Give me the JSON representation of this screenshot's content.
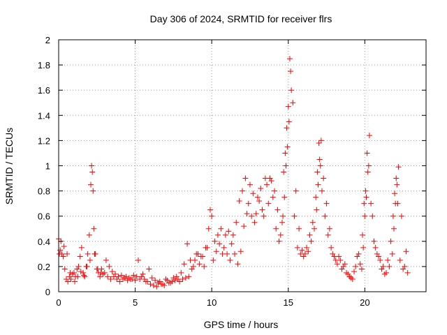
{
  "chart_data": {
    "type": "scatter",
    "title": "Day 306 of 2024, SRMTID for receiver flrs",
    "xlabel": "GPS time / hours",
    "ylabel": "SRMTID / TECUs",
    "xlim": [
      0,
      24
    ],
    "ylim": [
      0,
      2
    ],
    "xticks": [
      0,
      5,
      10,
      15,
      20
    ],
    "yticks": [
      0,
      0.2,
      0.4,
      0.6,
      0.8,
      1,
      1.2,
      1.4,
      1.6,
      1.8,
      2
    ],
    "grid": true,
    "marker": "+",
    "color": "#ff0000",
    "series": [
      {
        "name": "SRMTID",
        "x": [
          0.0,
          0.1,
          0.2,
          0.3,
          0.4,
          0.5,
          0.6,
          0.7,
          0.8,
          0.9,
          1.0,
          1.1,
          1.2,
          1.3,
          1.4,
          1.5,
          1.6,
          1.7,
          1.8,
          1.9,
          2.0,
          2.1,
          2.15,
          2.2,
          2.25,
          2.3,
          2.4,
          2.5,
          2.6,
          2.7,
          2.8,
          2.9,
          3.0,
          3.2,
          3.4,
          3.6,
          3.8,
          4.0,
          4.2,
          4.4,
          4.6,
          4.8,
          5.0,
          5.2,
          5.4,
          5.6,
          5.8,
          6.0,
          6.2,
          6.4,
          6.6,
          6.8,
          7.0,
          7.2,
          7.4,
          7.6,
          7.8,
          8.0,
          8.2,
          8.4,
          8.6,
          8.8,
          9.0,
          9.2,
          9.4,
          9.6,
          9.8,
          9.9,
          10.0,
          10.2,
          10.4,
          10.6,
          10.8,
          11.0,
          11.2,
          11.4,
          11.6,
          11.8,
          12.0,
          12.2,
          12.4,
          12.6,
          12.8,
          13.0,
          13.2,
          13.4,
          13.6,
          13.8,
          14.0,
          14.2,
          14.4,
          14.6,
          14.7,
          14.8,
          14.9,
          15.0,
          15.1,
          15.2,
          15.4,
          15.6,
          15.8,
          16.0,
          16.2,
          16.4,
          16.6,
          16.8,
          16.9,
          17.0,
          17.1,
          17.2,
          17.4,
          17.6,
          17.8,
          18.0,
          18.2,
          18.4,
          18.6,
          18.8,
          19.0,
          19.2,
          19.4,
          19.6,
          19.8,
          19.9,
          20.0,
          20.1,
          20.2,
          20.3,
          20.4,
          20.6,
          20.8,
          21.0,
          21.2,
          21.4,
          21.6,
          21.8,
          21.9,
          22.0,
          22.1,
          22.2,
          22.4,
          22.6,
          22.8,
          0.05,
          0.15,
          0.35,
          0.55,
          0.75,
          1.05,
          1.25,
          1.45,
          1.65,
          1.85,
          2.05,
          2.35,
          2.55,
          2.75,
          3.1,
          3.3,
          3.5,
          3.7,
          3.9,
          4.1,
          4.3,
          4.5,
          4.7,
          4.9,
          5.1,
          5.3,
          5.5,
          5.7,
          5.9,
          6.1,
          6.3,
          6.5,
          6.7,
          6.9,
          7.1,
          7.3,
          7.5,
          7.7,
          7.9,
          8.1,
          8.3,
          8.5,
          8.7,
          8.9,
          9.1,
          9.3,
          9.5,
          9.7,
          10.1,
          10.3,
          10.5,
          10.7,
          10.9,
          11.1,
          11.3,
          11.5,
          11.7,
          11.9,
          12.1,
          12.3,
          12.5,
          12.7,
          12.9,
          13.1,
          13.3,
          13.5,
          13.7,
          13.9,
          14.1,
          14.3,
          14.5,
          14.65,
          14.75,
          14.85,
          14.95,
          15.05,
          15.15,
          15.3,
          15.5,
          15.7,
          15.9,
          16.1,
          16.3,
          16.5,
          16.7,
          16.85,
          16.95,
          17.05,
          17.15,
          17.3,
          17.5,
          17.7,
          17.9,
          18.1,
          18.3,
          18.5,
          18.7,
          18.9,
          19.1,
          19.3,
          19.5,
          19.7,
          19.85,
          19.95,
          20.05,
          20.15,
          20.25,
          20.5,
          20.7,
          20.9,
          21.1,
          21.3,
          21.5,
          21.7,
          21.85,
          21.95,
          22.05,
          22.15,
          22.3,
          22.5,
          22.7
        ],
        "y": [
          0.42,
          0.33,
          0.3,
          0.28,
          0.18,
          0.1,
          0.08,
          0.12,
          0.1,
          0.14,
          0.15,
          0.12,
          0.18,
          0.2,
          0.28,
          0.35,
          0.15,
          0.12,
          0.2,
          0.3,
          0.45,
          0.85,
          1.0,
          0.95,
          0.8,
          0.5,
          0.3,
          0.18,
          0.15,
          0.12,
          0.18,
          0.14,
          0.15,
          0.12,
          0.1,
          0.12,
          0.1,
          0.08,
          0.1,
          0.12,
          0.11,
          0.1,
          0.09,
          0.25,
          0.12,
          0.1,
          0.08,
          0.06,
          0.05,
          0.04,
          0.08,
          0.06,
          0.1,
          0.07,
          0.08,
          0.09,
          0.1,
          0.15,
          0.22,
          0.38,
          0.25,
          0.2,
          0.3,
          0.22,
          0.28,
          0.35,
          0.5,
          0.65,
          0.6,
          0.4,
          0.45,
          0.5,
          0.35,
          0.3,
          0.25,
          0.45,
          0.55,
          0.72,
          0.8,
          0.9,
          0.7,
          0.6,
          0.55,
          0.75,
          0.82,
          0.6,
          0.85,
          0.9,
          0.75,
          0.5,
          0.4,
          0.55,
          0.95,
          1.1,
          1.3,
          1.47,
          1.85,
          1.6,
          0.6,
          0.35,
          0.3,
          0.28,
          0.35,
          0.45,
          0.55,
          0.75,
          0.95,
          1.18,
          1.0,
          0.8,
          0.6,
          0.45,
          0.35,
          0.28,
          0.22,
          0.25,
          0.2,
          0.15,
          0.12,
          0.1,
          0.2,
          0.3,
          0.18,
          0.35,
          0.6,
          0.75,
          0.95,
          1.24,
          0.7,
          0.4,
          0.3,
          0.25,
          0.2,
          0.15,
          0.2,
          0.3,
          0.5,
          0.7,
          0.85,
          0.99,
          0.6,
          0.2,
          0.15,
          0.3,
          0.4,
          0.36,
          0.3,
          0.15,
          0.08,
          0.12,
          0.16,
          0.13,
          0.2,
          0.25,
          0.3,
          0.18,
          0.15,
          0.25,
          0.2,
          0.16,
          0.14,
          0.12,
          0.13,
          0.11,
          0.09,
          0.1,
          0.13,
          0.12,
          0.1,
          0.14,
          0.08,
          0.18,
          0.11,
          0.09,
          0.07,
          0.06,
          0.05,
          0.09,
          0.07,
          0.11,
          0.12,
          0.08,
          0.1,
          0.11,
          0.12,
          0.18,
          0.25,
          0.3,
          0.28,
          0.2,
          0.35,
          0.25,
          0.32,
          0.38,
          0.3,
          0.45,
          0.48,
          0.38,
          0.3,
          0.22,
          0.32,
          0.52,
          0.62,
          0.85,
          0.78,
          0.62,
          0.72,
          0.65,
          0.9,
          0.7,
          0.88,
          0.8,
          0.65,
          0.45,
          0.6,
          0.75,
          1.0,
          1.15,
          1.35,
          1.75,
          1.5,
          0.8,
          0.5,
          0.33,
          0.3,
          0.32,
          0.4,
          0.5,
          0.65,
          0.85,
          1.05,
          1.2,
          0.9,
          0.7,
          0.5,
          0.3,
          0.25,
          0.28,
          0.18,
          0.22,
          0.14,
          0.11,
          0.16,
          0.28,
          0.22,
          0.45,
          0.7,
          0.8,
          1.1,
          1.0,
          0.6,
          0.35,
          0.28,
          0.18,
          0.14,
          0.25,
          0.4,
          0.6,
          0.78,
          0.9,
          0.7,
          0.25,
          0.18,
          0.32
        ]
      }
    ]
  }
}
